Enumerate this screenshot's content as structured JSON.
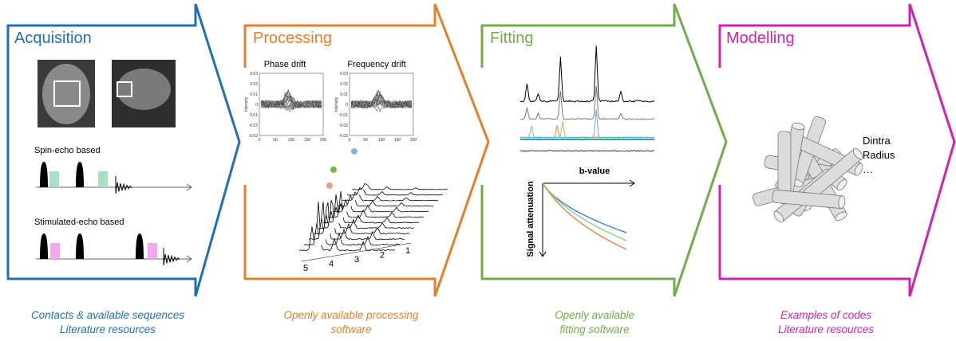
{
  "acquisition": {
    "title": "Acquisition",
    "spin_echo": "Spin-echo based",
    "stimulated_echo": "Stimulated-echo based",
    "caption": [
      "Contacts & available sequences",
      "Literature resources"
    ]
  },
  "processing": {
    "title": "Processing",
    "phase_drift": {
      "title": "Phase drift",
      "ylabel": "Intensity",
      "yticks": [
        "0.03",
        "0.02",
        "0.01",
        "0",
        "-0.01",
        "-0.02",
        "-0.03"
      ],
      "xticks": [
        "0",
        "50",
        "100",
        "150",
        "200"
      ]
    },
    "frequency_drift": {
      "title": "Frequency drift",
      "ylabel": "Intensity",
      "yticks": [
        "0.03",
        "0.02",
        "0.01",
        "0",
        "-0.01",
        "-0.02",
        "-0.03"
      ],
      "xticks": [
        "0",
        "50",
        "100",
        "150",
        "200"
      ]
    },
    "spectrum_xticks": [
      "5",
      "4",
      "3",
      "2",
      "1"
    ],
    "caption": [
      "Openly available processing",
      "software"
    ]
  },
  "fitting": {
    "title": "Fitting",
    "xlabel": "b-value",
    "ylabel": "Signal attenuation",
    "caption": [
      "Openly available",
      "fitting software"
    ]
  },
  "modelling": {
    "title": "Modelling",
    "parameters": [
      "Dintra",
      "Radius",
      "…"
    ],
    "caption": [
      "Examples of codes",
      "Literature resources"
    ]
  }
}
